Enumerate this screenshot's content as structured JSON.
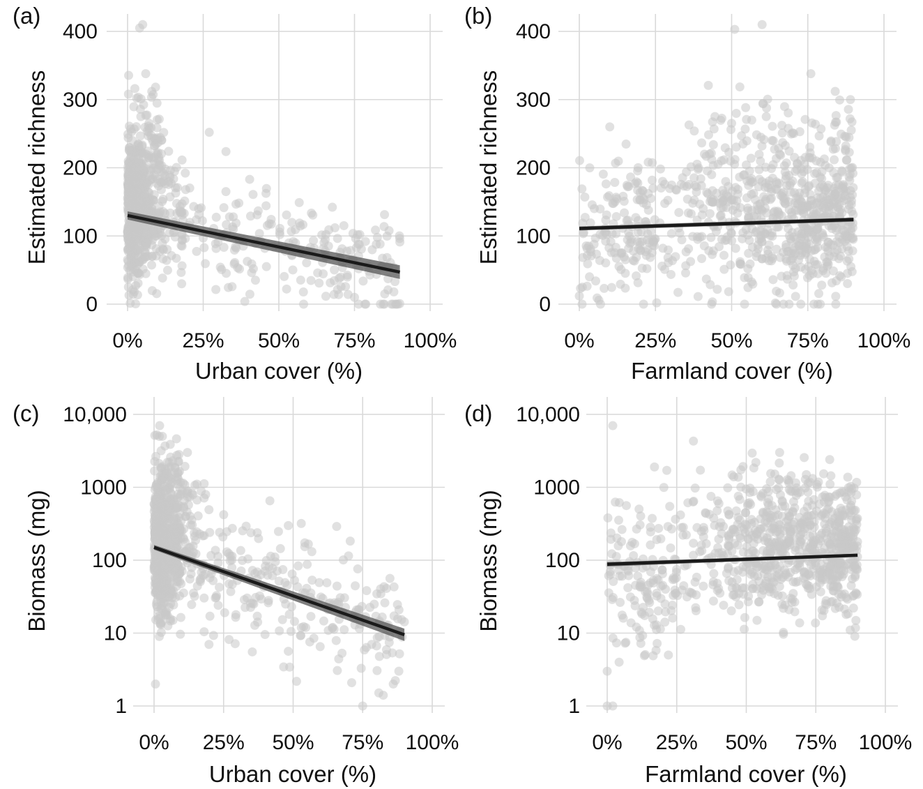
{
  "chart_data": [
    {
      "panel": "(a)",
      "type": "scatter",
      "xlabel": "Urban cover (%)",
      "ylabel": "Estimated richness",
      "xlim": [
        0,
        100
      ],
      "ylim": [
        0,
        400
      ],
      "yscale": "linear",
      "xticks": [
        0,
        25,
        50,
        75,
        100
      ],
      "xtick_labels": [
        "0%",
        "25%",
        "50%",
        "75%",
        "100%"
      ],
      "yticks": [
        0,
        100,
        200,
        300,
        400
      ],
      "ytick_labels": [
        "0",
        "100",
        "200",
        "300",
        "400"
      ],
      "grid": true,
      "fit": {
        "x": [
          0,
          90
        ],
        "y": [
          130,
          47
        ],
        "ci_upper": [
          136,
          57
        ],
        "ci_lower": [
          124,
          37
        ]
      },
      "points": {
        "count": 900,
        "seed": 11,
        "clusters": [
          {
            "n": 620,
            "x_mode": "exp",
            "x_scale": 5,
            "x_min": 0,
            "x_max": 18,
            "y_mean": 140,
            "y_sd": 55
          },
          {
            "n": 220,
            "x_mode": "uniform",
            "x_min": 15,
            "x_max": 90,
            "y_mode": "fit",
            "y_sd": 40
          },
          {
            "n": 60,
            "x_mode": "uniform",
            "x_min": 0,
            "x_max": 12,
            "y_mean": 240,
            "y_sd": 45
          }
        ],
        "extra": [
          [
            5,
            410
          ],
          [
            4,
            405
          ],
          [
            6,
            338
          ],
          [
            8,
            312
          ],
          [
            3,
            302
          ],
          [
            27,
            252
          ],
          [
            88,
            18
          ],
          [
            85,
            15
          ],
          [
            75,
            10
          ]
        ]
      }
    },
    {
      "panel": "(b)",
      "type": "scatter",
      "xlabel": "Farmland cover (%)",
      "ylabel": "Estimated richness",
      "xlim": [
        0,
        100
      ],
      "ylim": [
        0,
        400
      ],
      "yscale": "linear",
      "xticks": [
        0,
        25,
        50,
        75,
        100
      ],
      "xtick_labels": [
        "0%",
        "25%",
        "50%",
        "75%",
        "100%"
      ],
      "yticks": [
        0,
        100,
        200,
        300,
        400
      ],
      "ytick_labels": [
        "0",
        "100",
        "200",
        "300",
        "400"
      ],
      "grid": true,
      "fit": {
        "x": [
          0,
          90
        ],
        "y": [
          111,
          124
        ],
        "ci_upper": [
          114,
          127
        ],
        "ci_lower": [
          108,
          121
        ]
      },
      "points": {
        "count": 900,
        "seed": 23,
        "clusters": [
          {
            "n": 700,
            "x_mode": "beta",
            "x_min": 0,
            "x_max": 90,
            "y_mean": 125,
            "y_sd": 55
          },
          {
            "n": 120,
            "x_mode": "uniform",
            "x_min": 0,
            "x_max": 25,
            "y_mean": 95,
            "y_sd": 45
          },
          {
            "n": 80,
            "x_mode": "uniform",
            "x_min": 35,
            "x_max": 90,
            "y_mean": 230,
            "y_sd": 35
          }
        ],
        "extra": [
          [
            51,
            403
          ],
          [
            60,
            410
          ],
          [
            76,
            338
          ],
          [
            84,
            312
          ],
          [
            89,
            300
          ],
          [
            10,
            260
          ],
          [
            0,
            12
          ],
          [
            1,
            25
          ],
          [
            77,
            0
          ]
        ]
      }
    },
    {
      "panel": "(c)",
      "type": "scatter",
      "xlabel": "Urban cover (%)",
      "ylabel": "Biomass (mg)",
      "xlim": [
        0,
        100
      ],
      "ylim": [
        1,
        10000
      ],
      "yscale": "log",
      "xticks": [
        0,
        25,
        50,
        75,
        100
      ],
      "xtick_labels": [
        "0%",
        "25%",
        "50%",
        "75%",
        "100%"
      ],
      "yticks": [
        1,
        10,
        100,
        1000,
        10000
      ],
      "ytick_labels": [
        "1",
        "10",
        "100",
        "1000",
        "10,000"
      ],
      "grid": true,
      "fit": {
        "x": [
          0,
          90
        ],
        "y": [
          150,
          9.5
        ],
        "ci_upper": [
          162,
          11.5
        ],
        "ci_lower": [
          139,
          7.8
        ]
      },
      "points": {
        "count": 900,
        "seed": 37,
        "clusters": [
          {
            "n": 620,
            "x_mode": "exp",
            "x_scale": 5,
            "x_min": 0,
            "x_max": 18,
            "y_mean_log": 2.2,
            "y_sd_log": 0.5
          },
          {
            "n": 230,
            "x_mode": "uniform",
            "x_min": 15,
            "x_max": 90,
            "y_mode": "fit",
            "y_sd_log": 0.45
          },
          {
            "n": 50,
            "x_mode": "uniform",
            "x_min": 0,
            "x_max": 12,
            "y_mean_log": 3.1,
            "y_sd_log": 0.3
          }
        ],
        "extra": [
          [
            2,
            7000
          ],
          [
            3,
            5000
          ],
          [
            0.5,
            2
          ],
          [
            88,
            3
          ],
          [
            86,
            2
          ],
          [
            75,
            1
          ],
          [
            12,
            3000
          ]
        ]
      }
    },
    {
      "panel": "(d)",
      "type": "scatter",
      "xlabel": "Farmland cover (%)",
      "ylabel": "Biomass (mg)",
      "xlim": [
        0,
        100
      ],
      "ylim": [
        1,
        10000
      ],
      "yscale": "log",
      "xticks": [
        0,
        25,
        50,
        75,
        100
      ],
      "xtick_labels": [
        "0%",
        "25%",
        "50%",
        "75%",
        "100%"
      ],
      "yticks": [
        1,
        10,
        100,
        1000,
        10000
      ],
      "ytick_labels": [
        "1",
        "10",
        "100",
        "1000",
        "10,000"
      ],
      "grid": true,
      "fit": {
        "x": [
          0,
          90
        ],
        "y": [
          88,
          117
        ],
        "ci_upper": [
          94,
          123
        ],
        "ci_lower": [
          82,
          111
        ]
      },
      "points": {
        "count": 900,
        "seed": 51,
        "clusters": [
          {
            "n": 700,
            "x_mode": "beta",
            "x_min": 0,
            "x_max": 90,
            "y_mean_log": 2.1,
            "y_sd_log": 0.45
          },
          {
            "n": 120,
            "x_mode": "uniform",
            "x_min": 0,
            "x_max": 25,
            "y_mean_log": 1.7,
            "y_sd_log": 0.5
          },
          {
            "n": 80,
            "x_mode": "uniform",
            "x_min": 40,
            "x_max": 90,
            "y_mean_log": 2.9,
            "y_sd_log": 0.25
          }
        ],
        "extra": [
          [
            2,
            7000
          ],
          [
            31,
            4300
          ],
          [
            0,
            1
          ],
          [
            2,
            1
          ],
          [
            17,
            1900
          ],
          [
            62,
            3000
          ],
          [
            80,
            2400
          ],
          [
            0,
            3
          ],
          [
            22,
            5
          ]
        ]
      }
    }
  ]
}
